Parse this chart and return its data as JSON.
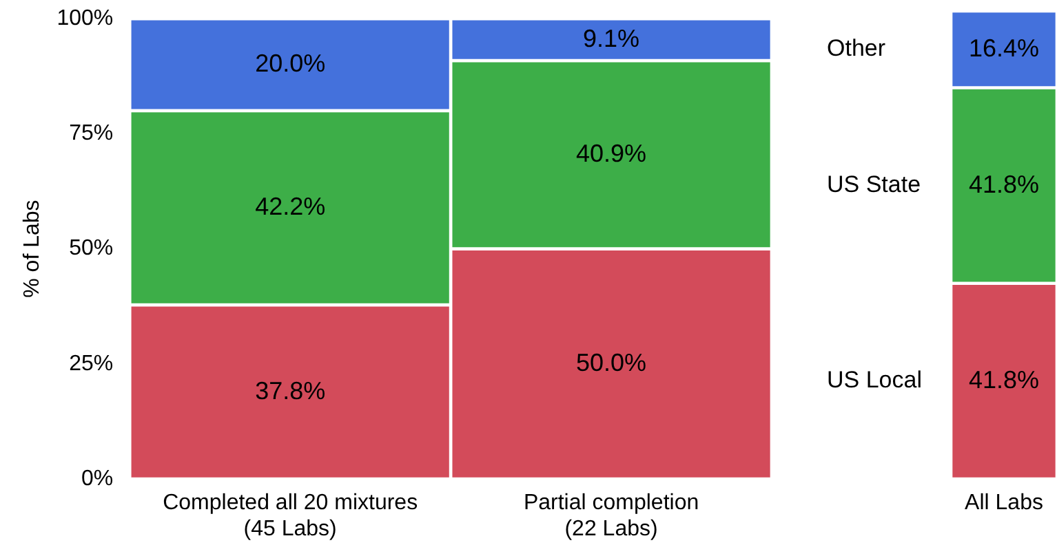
{
  "chart_data": [
    {
      "type": "bar",
      "stacked": true,
      "ylabel": "% of Labs",
      "categories": [
        "Completed all 20 mixtures\n(45 Labs)",
        "Partial completion\n(22 Labs)"
      ],
      "ylim": [
        0,
        100
      ],
      "yticks": [
        {
          "value": 0,
          "label": "0%"
        },
        {
          "value": 25,
          "label": "25%"
        },
        {
          "value": 50,
          "label": "50%"
        },
        {
          "value": 75,
          "label": "75%"
        },
        {
          "value": 100,
          "label": "100%"
        }
      ],
      "grid": false,
      "legend": false,
      "series": [
        {
          "color": "#d34b5a",
          "values": [
            37.8,
            50.0
          ],
          "value_labels": [
            "37.8%",
            "50.0%"
          ]
        },
        {
          "color": "#3dae48",
          "values": [
            42.2,
            40.9
          ],
          "value_labels": [
            "42.2%",
            "40.9%"
          ]
        },
        {
          "color": "#4471dc",
          "values": [
            20.0,
            9.1
          ],
          "value_labels": [
            "20.0%",
            "9.1%"
          ]
        }
      ]
    },
    {
      "type": "bar",
      "stacked": true,
      "categories": [
        "All Labs"
      ],
      "ylim": [
        0,
        100
      ],
      "tick_labels": "x",
      "grid": false,
      "legend": false,
      "series": [
        {
          "name": "US Local",
          "color": "#d34b5a",
          "values": [
            41.8
          ],
          "value_labels": [
            "41.8%"
          ]
        },
        {
          "name": "US State",
          "color": "#3dae48",
          "values": [
            41.8
          ],
          "value_labels": [
            "41.8%"
          ]
        },
        {
          "name": "Other",
          "color": "#4471dc",
          "values": [
            16.4
          ],
          "value_labels": [
            "16.4%"
          ]
        }
      ]
    }
  ]
}
